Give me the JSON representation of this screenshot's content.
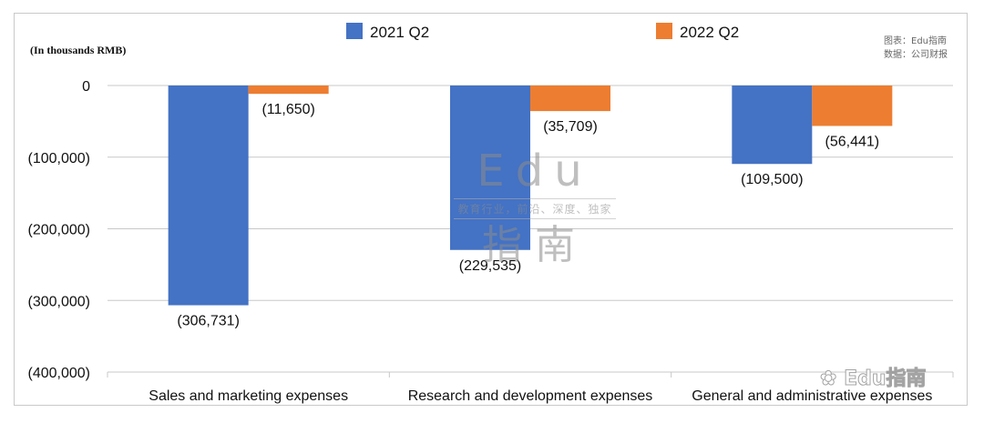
{
  "chart_data": {
    "type": "bar",
    "unit_label": "(In thousands RMB)",
    "categories": [
      "Sales and marketing expenses",
      "Research and development expenses",
      "General and administrative expenses"
    ],
    "series": [
      {
        "name": "2021 Q2",
        "values": [
          -306731,
          -229535,
          -109500
        ],
        "labels": [
          "(306,731)",
          "(229,535)",
          "(109,500)"
        ]
      },
      {
        "name": "2022 Q2",
        "values": [
          -11650,
          -35709,
          -56441
        ],
        "labels": [
          "(11,650)",
          "(35,709)",
          "(56,441)"
        ]
      }
    ],
    "colors": {
      "2021 Q2": "#4472c4",
      "2022 Q2": "#ed7d31"
    },
    "ylim": [
      -400000,
      0
    ],
    "yticks": [
      0,
      -100000,
      -200000,
      -300000,
      -400000
    ],
    "ytick_labels": [
      "0",
      "(100,000)",
      "(200,000)",
      "(300,000)",
      "(400,000)"
    ],
    "legend_position": "top",
    "grid": true
  },
  "source": {
    "line1": "图表：Edu指南",
    "line2": "数据：公司财报"
  },
  "watermark": {
    "big_top": "Edu",
    "slogan": "教育行业，前沿、深度、独家",
    "big_bottom": "指南",
    "corner": "Edu指南"
  }
}
